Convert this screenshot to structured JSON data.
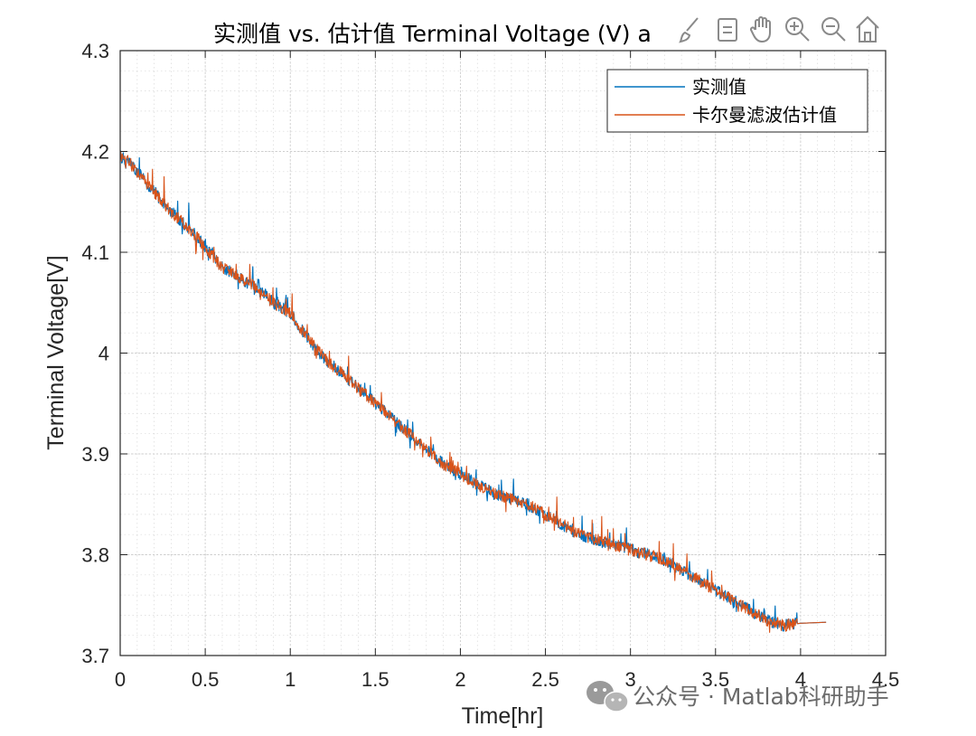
{
  "chart_data": {
    "type": "line",
    "title": "实测值 vs. 估计值 Terminal Voltage (V) a",
    "xlabel": "Time[hr]",
    "ylabel": "Terminal Voltage[V]",
    "xlim": [
      0,
      4.5
    ],
    "ylim": [
      3.7,
      4.3
    ],
    "x_ticks": [
      0,
      0.5,
      1,
      1.5,
      2,
      2.5,
      3,
      3.5,
      4,
      4.5
    ],
    "x_tick_labels": [
      "0",
      "0.5",
      "1",
      "1.5",
      "2",
      "2.5",
      "3",
      "3.5",
      "4",
      "4.5"
    ],
    "y_ticks": [
      3.7,
      3.8,
      3.9,
      4.0,
      4.1,
      4.2,
      4.3
    ],
    "y_tick_labels": [
      "3.7",
      "3.8",
      "3.9",
      "4",
      "4.1",
      "4.2",
      "4.3"
    ],
    "grid": true,
    "minor_grid": true,
    "legend_position": "top-right",
    "series": [
      {
        "name": "实测值",
        "color": "#0072BD",
        "x": [
          0,
          0.05,
          0.1,
          0.2,
          0.3,
          0.4,
          0.5,
          0.6,
          0.7,
          0.8,
          0.9,
          1.0,
          1.1,
          1.2,
          1.3,
          1.4,
          1.5,
          1.6,
          1.7,
          1.8,
          1.9,
          2.0,
          2.1,
          2.2,
          2.3,
          2.4,
          2.5,
          2.6,
          2.7,
          2.8,
          2.9,
          3.0,
          3.1,
          3.2,
          3.3,
          3.4,
          3.5,
          3.6,
          3.7,
          3.8,
          3.9,
          4.0,
          4.15
        ],
        "values": [
          4.195,
          4.19,
          4.18,
          4.16,
          4.14,
          4.125,
          4.105,
          4.085,
          4.075,
          4.065,
          4.05,
          4.04,
          4.015,
          3.995,
          3.98,
          3.965,
          3.95,
          3.935,
          3.92,
          3.905,
          3.89,
          3.88,
          3.87,
          3.86,
          3.855,
          3.85,
          3.84,
          3.83,
          3.82,
          3.815,
          3.81,
          3.805,
          3.8,
          3.795,
          3.785,
          3.775,
          3.765,
          3.755,
          3.745,
          3.735,
          3.73,
          3.732,
          3.733
        ]
      },
      {
        "name": "卡尔曼滤波估计值",
        "color": "#D95319",
        "x": [
          0,
          0.05,
          0.1,
          0.2,
          0.3,
          0.4,
          0.5,
          0.6,
          0.7,
          0.8,
          0.9,
          1.0,
          1.1,
          1.2,
          1.3,
          1.4,
          1.5,
          1.6,
          1.7,
          1.8,
          1.9,
          2.0,
          2.1,
          2.2,
          2.3,
          2.4,
          2.5,
          2.6,
          2.7,
          2.8,
          2.9,
          3.0,
          3.1,
          3.2,
          3.3,
          3.4,
          3.5,
          3.6,
          3.7,
          3.8,
          3.9,
          4.0,
          4.15
        ],
        "values": [
          4.195,
          4.19,
          4.18,
          4.16,
          4.14,
          4.125,
          4.105,
          4.085,
          4.075,
          4.065,
          4.05,
          4.04,
          4.015,
          3.995,
          3.98,
          3.965,
          3.95,
          3.935,
          3.92,
          3.905,
          3.89,
          3.88,
          3.87,
          3.86,
          3.855,
          3.85,
          3.84,
          3.83,
          3.82,
          3.815,
          3.81,
          3.805,
          3.8,
          3.795,
          3.785,
          3.775,
          3.765,
          3.755,
          3.745,
          3.735,
          3.73,
          3.732,
          3.733
        ]
      }
    ]
  },
  "toolbar": {
    "icons": [
      "brush-icon",
      "export-icon",
      "pan-icon",
      "zoom-in-icon",
      "zoom-out-icon",
      "home-icon"
    ]
  },
  "watermark": {
    "text": "公众号 · Matlab科研助手",
    "icon": "wechat-icon",
    "color": "#6b6b6b"
  }
}
